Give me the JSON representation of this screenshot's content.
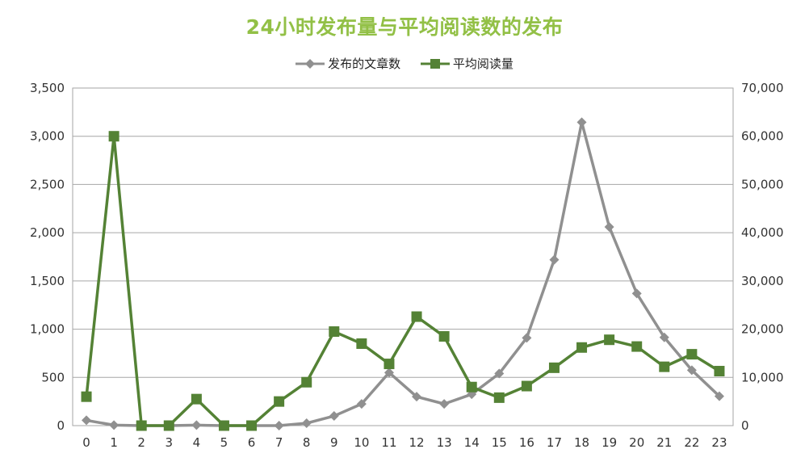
{
  "chart_data": {
    "type": "line",
    "title": "24小时发布量与平均阅读数的发布",
    "x": [
      0,
      1,
      2,
      3,
      4,
      5,
      6,
      7,
      8,
      9,
      10,
      11,
      12,
      13,
      14,
      15,
      16,
      17,
      18,
      19,
      20,
      21,
      22,
      23
    ],
    "x_tick_labels": [
      "0",
      "1",
      "2",
      "3",
      "4",
      "5",
      "6",
      "7",
      "8",
      "9",
      "10",
      "11",
      "12",
      "13",
      "14",
      "15",
      "16",
      "17",
      "18",
      "19",
      "20",
      "21",
      "22",
      "23"
    ],
    "y_left_ticks": [
      "0",
      "500",
      "1,000",
      "1,500",
      "2,000",
      "2,500",
      "3,000",
      "3,500"
    ],
    "y_right_ticks": [
      "0",
      "10,000",
      "20,000",
      "30,000",
      "40,000",
      "50,000",
      "60,000",
      "70,000"
    ],
    "ylim_left": [
      0,
      3500
    ],
    "ylim_right": [
      0,
      70000
    ],
    "legend_position": "top-center",
    "grid": true,
    "series": [
      {
        "name": "发布的文章数",
        "axis": "left",
        "color": "#909090",
        "marker": "diamond",
        "values": [
          55,
          5,
          0,
          0,
          5,
          0,
          0,
          0,
          25,
          100,
          225,
          550,
          300,
          225,
          325,
          540,
          910,
          1720,
          3145,
          2060,
          1370,
          915,
          575,
          305
        ]
      },
      {
        "name": "平均阅读量",
        "axis": "right",
        "color": "#548235",
        "marker": "square",
        "values": [
          6000,
          60000,
          0,
          0,
          5500,
          0,
          0,
          5000,
          9000,
          19500,
          17000,
          12800,
          22600,
          18500,
          8000,
          5800,
          8200,
          12000,
          16200,
          17800,
          16400,
          12200,
          14800,
          11300
        ]
      }
    ]
  }
}
